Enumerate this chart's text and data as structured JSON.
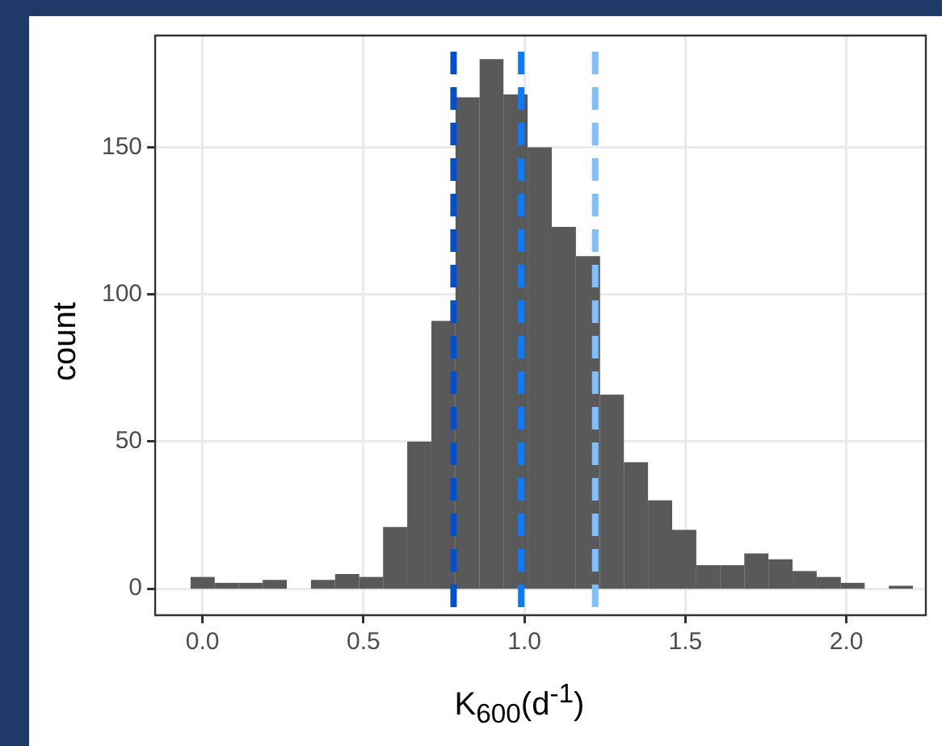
{
  "chart_data": {
    "type": "histogram",
    "xlabel": "K$_{600}$(d$^{-1}$)",
    "ylabel": "count",
    "bins": [
      -0.037,
      0.038,
      0.113,
      0.187,
      0.262,
      0.337,
      0.412,
      0.487,
      0.561,
      0.636,
      0.711,
      0.786,
      0.861,
      0.935,
      1.01,
      1.085,
      1.16,
      1.235,
      1.309,
      1.384,
      1.459,
      1.534,
      1.609,
      1.683,
      1.758,
      1.833,
      1.908,
      1.983,
      2.057,
      2.132,
      2.207
    ],
    "values": [
      4,
      2,
      2,
      3,
      0,
      3,
      5,
      4,
      21,
      50,
      91,
      167,
      180,
      168,
      150,
      123,
      113,
      66,
      43,
      30,
      20,
      8,
      8,
      12,
      10,
      6,
      4,
      2,
      0,
      1
    ],
    "color": "#595959",
    "xlim": [
      -0.147,
      2.247
    ],
    "xticks": [
      {
        "value": 0,
        "label": "0.0"
      },
      0.5,
      {
        "value": 1,
        "label": "1.0"
      },
      1.5,
      {
        "value": 2,
        "label": "2.0"
      }
    ],
    "ylim": [
      -9,
      188
    ],
    "yticks": [
      0,
      50,
      100,
      150
    ],
    "grid": true,
    "ref_lines": [
      {
        "axis": "x",
        "value": 0.78,
        "color": "#0050d0",
        "line_style": "dashed"
      },
      {
        "axis": "x",
        "value": 0.99,
        "color": "#0a7bff",
        "line_style": "dashed"
      },
      {
        "axis": "x",
        "value": 1.22,
        "color": "#80bfff",
        "line_style": "dashed"
      }
    ]
  }
}
